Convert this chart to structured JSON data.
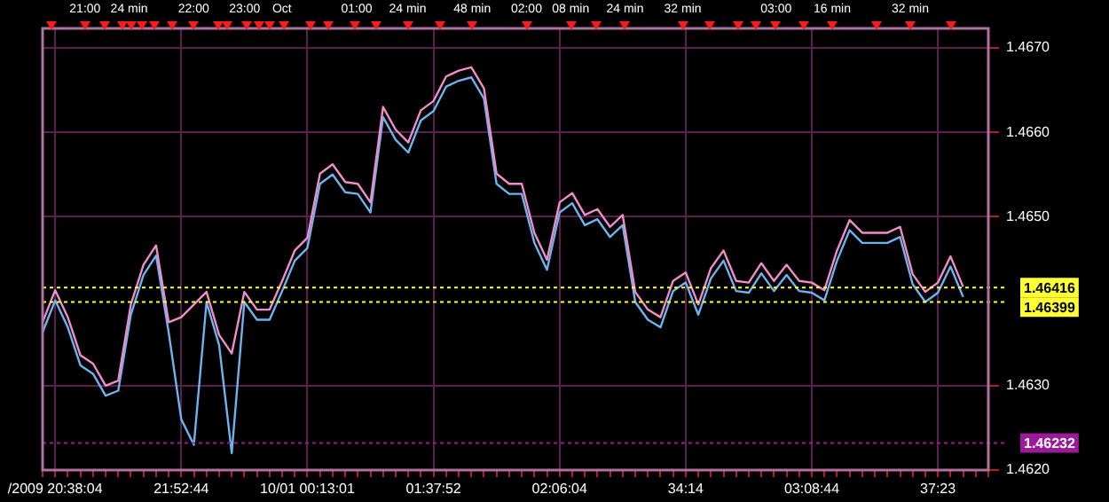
{
  "chart_data": {
    "type": "line",
    "categories": [
      null,
      "/2009 20:38:04",
      null,
      null,
      null,
      null,
      null,
      null,
      null,
      null,
      null,
      "21:52:44",
      null,
      null,
      null,
      null,
      null,
      null,
      null,
      null,
      null,
      "10/01 00:13:01",
      null,
      null,
      null,
      null,
      null,
      null,
      null,
      null,
      null,
      "01:37:52",
      null,
      null,
      null,
      null,
      null,
      null,
      null,
      null,
      null,
      "02:06:04",
      null,
      null,
      null,
      null,
      null,
      null,
      null,
      null,
      null,
      "34:14",
      null,
      null,
      null,
      null,
      null,
      null,
      null,
      null,
      null,
      "03:08:44",
      null,
      null,
      null,
      null,
      null,
      null,
      null,
      null,
      null,
      "37:23",
      null,
      null,
      null,
      null
    ],
    "series": [
      {
        "color": "#f08cc8",
        "values": [
          1.46375,
          1.46413,
          1.46381,
          1.46336,
          1.46326,
          1.463,
          1.46306,
          1.46396,
          1.46443,
          1.46466,
          1.46375,
          1.46381,
          1.46396,
          1.46411,
          1.4636,
          1.46338,
          1.46411,
          1.4639,
          1.4639,
          1.46424,
          1.4646,
          1.46475,
          1.46551,
          1.46562,
          1.46541,
          1.46539,
          1.46517,
          1.4663,
          1.46603,
          1.46588,
          1.46626,
          1.46637,
          1.46666,
          1.46673,
          1.46677,
          1.46652,
          1.46551,
          1.46539,
          1.46539,
          1.46481,
          1.46449,
          1.46517,
          1.46528,
          1.46502,
          1.46509,
          1.46488,
          1.46502,
          1.46411,
          1.4639,
          1.46381,
          1.46424,
          1.46434,
          1.46396,
          1.46439,
          1.4646,
          1.46424,
          1.46422,
          1.46445,
          1.46424,
          1.46443,
          1.46424,
          1.46422,
          1.46413,
          1.4646,
          1.46496,
          1.46481,
          1.46481,
          1.46481,
          1.46488,
          1.46432,
          1.46411,
          1.46422,
          1.46453,
          1.46417,
          null,
          null
        ]
      },
      {
        "color": "#6cb4f0",
        "values": [
          1.46363,
          1.46401,
          1.46369,
          1.46324,
          1.46314,
          1.46288,
          1.46294,
          1.46384,
          1.46431,
          1.46454,
          1.46363,
          1.4626,
          1.4623,
          1.46399,
          1.46348,
          1.4622,
          1.46399,
          1.46378,
          1.46378,
          1.46412,
          1.46448,
          1.46463,
          1.46539,
          1.4655,
          1.46529,
          1.46527,
          1.46505,
          1.46618,
          1.46591,
          1.46576,
          1.46614,
          1.46625,
          1.46654,
          1.46661,
          1.46665,
          1.4664,
          1.46539,
          1.46527,
          1.46527,
          1.46469,
          1.46437,
          1.46505,
          1.46516,
          1.4649,
          1.46497,
          1.46476,
          1.4649,
          1.46399,
          1.46378,
          1.46369,
          1.46412,
          1.46422,
          1.46384,
          1.46427,
          1.46448,
          1.46412,
          1.4641,
          1.46433,
          1.46412,
          1.46431,
          1.46412,
          1.4641,
          1.46401,
          1.46448,
          1.46484,
          1.46469,
          1.46469,
          1.46469,
          1.46476,
          1.4642,
          1.46399,
          1.4641,
          1.46441,
          1.46405,
          null,
          null
        ]
      }
    ],
    "ylim": [
      1.462,
      1.46723
    ],
    "yticks": [
      {
        "value": 1.462,
        "label": "1.4620"
      },
      {
        "value": 1.463,
        "label": "1.4630"
      },
      {
        "value": 1.465,
        "label": "1.4650"
      },
      {
        "value": 1.466,
        "label": "1.4660"
      },
      {
        "value": 1.467,
        "label": "1.4670"
      }
    ],
    "ref_lines": [
      {
        "axis": "y",
        "value": 1.46416,
        "label": "1.46416",
        "color": "#ffff33",
        "line_style": "dotted"
      },
      {
        "axis": "y",
        "value": 1.46399,
        "label": "1.46399",
        "color": "#ffff33",
        "line_style": "dotted"
      },
      {
        "axis": "y",
        "value": 1.46232,
        "label": "1.46232",
        "color": "#9a1a9a",
        "line_style": "dotted"
      }
    ],
    "annotations": [
      "21:00",
      "24 min",
      "22:00",
      "23:00",
      "Oct",
      "01:00",
      "24 min",
      "48 min",
      "02:00",
      "08 min",
      "24 min",
      "32 min",
      "03:00",
      "16 min",
      "32 min"
    ],
    "grid": true,
    "legend": false,
    "marker": "none",
    "line_style": "solid"
  }
}
